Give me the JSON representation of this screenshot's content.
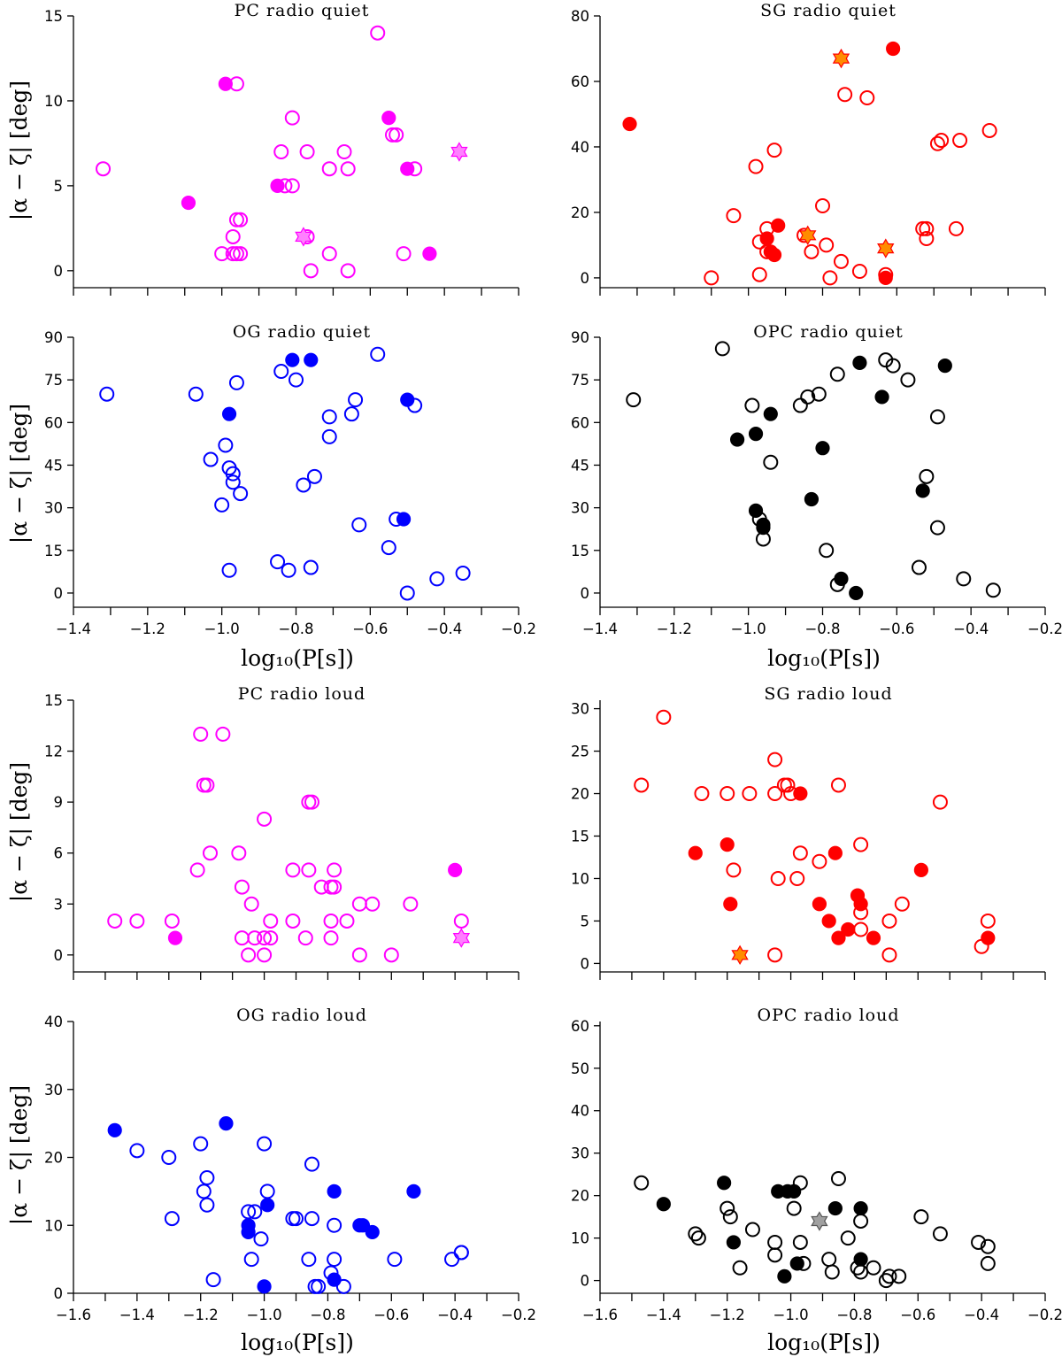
{
  "colors": {
    "PC": "#ff00ff",
    "SG": "#ff0000",
    "OG": "#0000ff",
    "OPC": "#000000",
    "star_orange": "#ff8c00",
    "star_pink": "#ff80ff",
    "star_grey": "#a0a0a0"
  },
  "chart_data": [
    {
      "type": "scatter",
      "title": "PC radio quiet",
      "xlabel": "",
      "ylabel": "|α − ζ| [deg]",
      "xlim": [
        -1.4,
        -0.2
      ],
      "ylim": [
        -1,
        15
      ],
      "yticks": [
        0,
        5,
        10,
        15
      ],
      "xticks": [],
      "color": "PC",
      "open": [
        [
          -1.32,
          6
        ],
        [
          -0.96,
          11
        ],
        [
          -1.0,
          1
        ],
        [
          -0.97,
          2
        ],
        [
          -0.96,
          3
        ],
        [
          -0.95,
          3
        ],
        [
          -0.97,
          1
        ],
        [
          -0.95,
          1
        ],
        [
          -0.96,
          1
        ],
        [
          -0.81,
          9
        ],
        [
          -0.84,
          7
        ],
        [
          -0.83,
          5
        ],
        [
          -0.81,
          5
        ],
        [
          -0.77,
          7
        ],
        [
          -0.71,
          6
        ],
        [
          -0.66,
          6
        ],
        [
          -0.67,
          7
        ],
        [
          -0.77,
          2
        ],
        [
          -0.76,
          0
        ],
        [
          -0.71,
          1
        ],
        [
          -0.66,
          0
        ],
        [
          -0.58,
          14
        ],
        [
          -0.54,
          8
        ],
        [
          -0.53,
          8
        ],
        [
          -0.48,
          6
        ],
        [
          -0.51,
          1
        ]
      ],
      "filled": [
        [
          -0.99,
          11
        ],
        [
          -1.09,
          4
        ],
        [
          -0.85,
          5
        ],
        [
          -0.55,
          9
        ],
        [
          -0.5,
          6
        ],
        [
          -0.44,
          1
        ]
      ],
      "star": [
        [
          -0.78,
          2
        ],
        [
          -0.36,
          7
        ]
      ],
      "star_color": "star_pink"
    },
    {
      "type": "scatter",
      "title": "SG radio quiet",
      "xlabel": "",
      "ylabel": "",
      "xlim": [
        -1.4,
        -0.2
      ],
      "ylim": [
        -3,
        80
      ],
      "yticks": [
        0,
        20,
        40,
        60,
        80
      ],
      "xticks": [],
      "color": "SG",
      "open": [
        [
          -1.1,
          0
        ],
        [
          -1.04,
          19
        ],
        [
          -0.98,
          34
        ],
        [
          -0.97,
          11
        ],
        [
          -0.97,
          1
        ],
        [
          -0.95,
          15
        ],
        [
          -0.95,
          8
        ],
        [
          -0.93,
          39
        ],
        [
          -0.85,
          13
        ],
        [
          -0.83,
          8
        ],
        [
          -0.8,
          22
        ],
        [
          -0.79,
          10
        ],
        [
          -0.78,
          0
        ],
        [
          -0.75,
          5
        ],
        [
          -0.74,
          56
        ],
        [
          -0.7,
          2
        ],
        [
          -0.68,
          55
        ],
        [
          -0.63,
          1
        ],
        [
          -0.53,
          15
        ],
        [
          -0.52,
          12
        ],
        [
          -0.52,
          15
        ],
        [
          -0.49,
          41
        ],
        [
          -0.48,
          42
        ],
        [
          -0.43,
          42
        ],
        [
          -0.44,
          15
        ],
        [
          -0.35,
          45
        ]
      ],
      "filled": [
        [
          -1.32,
          47
        ],
        [
          -0.95,
          12
        ],
        [
          -0.94,
          8
        ],
        [
          -0.93,
          7
        ],
        [
          -0.92,
          16
        ],
        [
          -0.61,
          70
        ],
        [
          -0.63,
          0
        ]
      ],
      "star": [
        [
          -0.75,
          67
        ],
        [
          -0.84,
          13
        ],
        [
          -0.63,
          9
        ]
      ],
      "star_color": "star_orange"
    },
    {
      "type": "scatter",
      "title": "OG radio quiet",
      "xlabel": "log₁₀(P[s])",
      "ylabel": "|α − ζ| [deg]",
      "xlim": [
        -1.4,
        -0.2
      ],
      "ylim": [
        -5,
        90
      ],
      "yticks": [
        0,
        15,
        30,
        45,
        60,
        75,
        90
      ],
      "xticks": [
        -1.4,
        -1.2,
        -1.0,
        -0.8,
        -0.6,
        -0.4,
        -0.2
      ],
      "color": "OG",
      "open": [
        [
          -1.31,
          70
        ],
        [
          -1.07,
          70
        ],
        [
          -1.03,
          47
        ],
        [
          -1.0,
          31
        ],
        [
          -0.99,
          52
        ],
        [
          -0.98,
          44
        ],
        [
          -0.97,
          39
        ],
        [
          -0.97,
          42
        ],
        [
          -0.96,
          74
        ],
        [
          -0.95,
          35
        ],
        [
          -0.98,
          8
        ],
        [
          -0.85,
          11
        ],
        [
          -0.84,
          78
        ],
        [
          -0.8,
          75
        ],
        [
          -0.78,
          38
        ],
        [
          -0.75,
          41
        ],
        [
          -0.76,
          9
        ],
        [
          -0.82,
          8
        ],
        [
          -0.71,
          62
        ],
        [
          -0.71,
          55
        ],
        [
          -0.65,
          63
        ],
        [
          -0.64,
          68
        ],
        [
          -0.63,
          24
        ],
        [
          -0.58,
          84
        ],
        [
          -0.55,
          16
        ],
        [
          -0.53,
          26
        ],
        [
          -0.48,
          66
        ],
        [
          -0.5,
          0
        ],
        [
          -0.42,
          5
        ],
        [
          -0.35,
          7
        ]
      ],
      "filled": [
        [
          -0.98,
          63
        ],
        [
          -0.81,
          82
        ],
        [
          -0.76,
          82
        ],
        [
          -0.51,
          26
        ],
        [
          -0.5,
          68
        ]
      ],
      "star": [],
      "star_color": ""
    },
    {
      "type": "scatter",
      "title": "OPC radio quiet",
      "xlabel": "log₁₀(P[s])",
      "ylabel": "",
      "xlim": [
        -1.4,
        -0.2
      ],
      "ylim": [
        -5,
        90
      ],
      "yticks": [
        0,
        15,
        30,
        45,
        60,
        75,
        90
      ],
      "xticks": [
        -1.4,
        -1.2,
        -1.0,
        -0.8,
        -0.6,
        -0.4,
        -0.2
      ],
      "color": "OPC",
      "open": [
        [
          -1.31,
          68
        ],
        [
          -1.07,
          86
        ],
        [
          -0.99,
          66
        ],
        [
          -0.97,
          26
        ],
        [
          -0.96,
          19
        ],
        [
          -0.94,
          46
        ],
        [
          -0.86,
          66
        ],
        [
          -0.84,
          69
        ],
        [
          -0.81,
          70
        ],
        [
          -0.79,
          15
        ],
        [
          -0.76,
          77
        ],
        [
          -0.76,
          3
        ],
        [
          -0.63,
          82
        ],
        [
          -0.61,
          80
        ],
        [
          -0.57,
          75
        ],
        [
          -0.54,
          9
        ],
        [
          -0.52,
          41
        ],
        [
          -0.49,
          62
        ],
        [
          -0.49,
          23
        ],
        [
          -0.42,
          5
        ],
        [
          -0.34,
          1
        ]
      ],
      "filled": [
        [
          -1.03,
          54
        ],
        [
          -0.98,
          56
        ],
        [
          -0.98,
          29
        ],
        [
          -0.96,
          24
        ],
        [
          -0.96,
          23
        ],
        [
          -0.94,
          63
        ],
        [
          -0.83,
          33
        ],
        [
          -0.8,
          51
        ],
        [
          -0.75,
          5
        ],
        [
          -0.7,
          81
        ],
        [
          -0.71,
          0
        ],
        [
          -0.64,
          69
        ],
        [
          -0.53,
          36
        ],
        [
          -0.47,
          80
        ]
      ],
      "star": [],
      "star_color": ""
    },
    {
      "type": "scatter",
      "title": "PC radio loud",
      "xlabel": "",
      "ylabel": "|α − ζ| [deg]",
      "xlim": [
        -1.6,
        -0.2
      ],
      "ylim": [
        -1,
        15
      ],
      "yticks": [
        0,
        3,
        6,
        9,
        12,
        15
      ],
      "xticks": [],
      "color": "PC",
      "open": [
        [
          -1.47,
          2
        ],
        [
          -1.4,
          2
        ],
        [
          -1.29,
          2
        ],
        [
          -1.2,
          13
        ],
        [
          -1.13,
          13
        ],
        [
          -1.19,
          10
        ],
        [
          -1.18,
          10
        ],
        [
          -1.17,
          6
        ],
        [
          -1.21,
          5
        ],
        [
          -1.08,
          6
        ],
        [
          -1.07,
          4
        ],
        [
          -1.07,
          1
        ],
        [
          -1.04,
          3
        ],
        [
          -1.03,
          1
        ],
        [
          -1.0,
          8
        ],
        [
          -0.98,
          2
        ],
        [
          -1.0,
          1
        ],
        [
          -0.98,
          1
        ],
        [
          -1.05,
          0
        ],
        [
          -1.0,
          0
        ],
        [
          -0.91,
          5
        ],
        [
          -0.86,
          9
        ],
        [
          -0.85,
          9
        ],
        [
          -0.86,
          5
        ],
        [
          -0.91,
          2
        ],
        [
          -0.87,
          1
        ],
        [
          -0.82,
          4
        ],
        [
          -0.79,
          4
        ],
        [
          -0.78,
          5
        ],
        [
          -0.78,
          4
        ],
        [
          -0.79,
          2
        ],
        [
          -0.79,
          1
        ],
        [
          -0.74,
          2
        ],
        [
          -0.7,
          3
        ],
        [
          -0.66,
          3
        ],
        [
          -0.7,
          0
        ],
        [
          -0.6,
          0
        ],
        [
          -0.54,
          3
        ],
        [
          -0.38,
          2
        ]
      ],
      "filled": [
        [
          -1.28,
          1
        ],
        [
          -0.4,
          5
        ]
      ],
      "star": [
        [
          -0.38,
          1
        ]
      ],
      "star_color": "star_pink"
    },
    {
      "type": "scatter",
      "title": "SG radio loud",
      "xlabel": "",
      "ylabel": "",
      "xlim": [
        -1.6,
        -0.2
      ],
      "ylim": [
        -1,
        31
      ],
      "yticks": [
        0,
        5,
        10,
        15,
        20,
        25,
        30
      ],
      "xticks": [],
      "color": "SG",
      "open": [
        [
          -1.47,
          21
        ],
        [
          -1.4,
          29
        ],
        [
          -1.28,
          20
        ],
        [
          -1.2,
          20
        ],
        [
          -1.18,
          11
        ],
        [
          -1.13,
          20
        ],
        [
          -1.05,
          24
        ],
        [
          -1.05,
          20
        ],
        [
          -1.02,
          21
        ],
        [
          -1.0,
          20
        ],
        [
          -1.01,
          21
        ],
        [
          -1.04,
          10
        ],
        [
          -0.98,
          10
        ],
        [
          -0.97,
          13
        ],
        [
          -0.91,
          12
        ],
        [
          -0.85,
          21
        ],
        [
          -0.78,
          14
        ],
        [
          -0.78,
          6
        ],
        [
          -0.78,
          4
        ],
        [
          -0.69,
          5
        ],
        [
          -0.69,
          1
        ],
        [
          -0.65,
          7
        ],
        [
          -0.53,
          19
        ],
        [
          -1.05,
          1
        ],
        [
          -0.38,
          5
        ],
        [
          -0.4,
          2
        ]
      ],
      "filled": [
        [
          -1.3,
          13
        ],
        [
          -1.2,
          14
        ],
        [
          -1.19,
          7
        ],
        [
          -0.97,
          20
        ],
        [
          -0.91,
          7
        ],
        [
          -0.86,
          13
        ],
        [
          -0.88,
          5
        ],
        [
          -0.85,
          3
        ],
        [
          -0.82,
          4
        ],
        [
          -0.79,
          8
        ],
        [
          -0.78,
          7
        ],
        [
          -0.74,
          3
        ],
        [
          -0.59,
          11
        ],
        [
          -0.38,
          3
        ]
      ],
      "star": [
        [
          -1.16,
          1
        ]
      ],
      "star_color": "star_orange"
    },
    {
      "type": "scatter",
      "title": "OG radio loud",
      "xlabel": "log₁₀(P[s])",
      "ylabel": "|α − ζ| [deg]",
      "xlim": [
        -1.6,
        -0.2
      ],
      "ylim": [
        0,
        40
      ],
      "yticks": [
        0,
        10,
        20,
        30,
        40
      ],
      "xticks": [
        -1.6,
        -1.4,
        -1.2,
        -1.0,
        -0.8,
        -0.6,
        -0.4,
        -0.2
      ],
      "color": "OG",
      "open": [
        [
          -1.4,
          21
        ],
        [
          -1.3,
          20
        ],
        [
          -1.29,
          11
        ],
        [
          -1.2,
          22
        ],
        [
          -1.19,
          15
        ],
        [
          -1.18,
          17
        ],
        [
          -1.18,
          13
        ],
        [
          -1.16,
          2
        ],
        [
          -1.05,
          12
        ],
        [
          -1.04,
          5
        ],
        [
          -1.03,
          12
        ],
        [
          -1.01,
          8
        ],
        [
          -1.0,
          22
        ],
        [
          -0.99,
          15
        ],
        [
          -0.91,
          11
        ],
        [
          -0.9,
          11
        ],
        [
          -0.86,
          5
        ],
        [
          -0.85,
          19
        ],
        [
          -0.85,
          11
        ],
        [
          -0.84,
          1
        ],
        [
          -0.83,
          1
        ],
        [
          -0.78,
          10
        ],
        [
          -0.78,
          5
        ],
        [
          -0.79,
          3
        ],
        [
          -0.75,
          1
        ],
        [
          -0.59,
          5
        ],
        [
          -0.41,
          5
        ],
        [
          -0.38,
          6
        ],
        [
          -0.38,
          6
        ]
      ],
      "filled": [
        [
          -1.47,
          24
        ],
        [
          -1.12,
          25
        ],
        [
          -1.05,
          10
        ],
        [
          -1.05,
          9
        ],
        [
          -0.99,
          13
        ],
        [
          -1.0,
          1
        ],
        [
          -0.78,
          15
        ],
        [
          -0.78,
          2
        ],
        [
          -0.7,
          10
        ],
        [
          -0.69,
          10
        ],
        [
          -0.66,
          9
        ],
        [
          -0.53,
          15
        ]
      ],
      "star": [],
      "star_color": ""
    },
    {
      "type": "scatter",
      "title": "OPC radio loud",
      "xlabel": "log₁₀(P[s])",
      "ylabel": "",
      "xlim": [
        -1.6,
        -0.2
      ],
      "ylim": [
        -3,
        61
      ],
      "yticks": [
        0,
        10,
        20,
        30,
        40,
        50,
        60
      ],
      "xticks": [
        -1.6,
        -1.4,
        -1.2,
        -1.0,
        -0.8,
        -0.6,
        -0.4,
        -0.2
      ],
      "color": "OPC",
      "open": [
        [
          -1.47,
          23
        ],
        [
          -1.3,
          11
        ],
        [
          -1.29,
          10
        ],
        [
          -1.2,
          17
        ],
        [
          -1.19,
          15
        ],
        [
          -1.16,
          3
        ],
        [
          -1.12,
          12
        ],
        [
          -1.05,
          6
        ],
        [
          -1.05,
          9
        ],
        [
          -0.99,
          17
        ],
        [
          -0.97,
          23
        ],
        [
          -0.97,
          9
        ],
        [
          -0.96,
          4
        ],
        [
          -0.88,
          5
        ],
        [
          -0.87,
          2
        ],
        [
          -0.85,
          24
        ],
        [
          -0.82,
          10
        ],
        [
          -0.79,
          3
        ],
        [
          -0.78,
          2
        ],
        [
          -0.78,
          14
        ],
        [
          -0.74,
          3
        ],
        [
          -0.7,
          0
        ],
        [
          -0.69,
          1
        ],
        [
          -0.66,
          1
        ],
        [
          -0.59,
          15
        ],
        [
          -0.53,
          11
        ],
        [
          -0.41,
          9
        ],
        [
          -0.38,
          8
        ],
        [
          -0.38,
          4
        ]
      ],
      "filled": [
        [
          -1.4,
          18
        ],
        [
          -1.21,
          23
        ],
        [
          -1.18,
          9
        ],
        [
          -1.04,
          21
        ],
        [
          -1.02,
          1
        ],
        [
          -1.01,
          21
        ],
        [
          -0.99,
          21
        ],
        [
          -0.98,
          4
        ],
        [
          -0.86,
          17
        ],
        [
          -0.78,
          17
        ],
        [
          -0.78,
          5
        ]
      ],
      "star": [
        [
          -0.91,
          14
        ]
      ],
      "star_color": "star_grey"
    }
  ]
}
